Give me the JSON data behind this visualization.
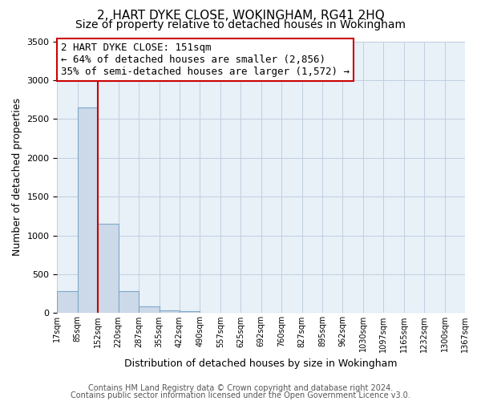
{
  "title": "2, HART DYKE CLOSE, WOKINGHAM, RG41 2HQ",
  "subtitle": "Size of property relative to detached houses in Wokingham",
  "xlabel": "Distribution of detached houses by size in Wokingham",
  "ylabel": "Number of detached properties",
  "bin_labels": [
    "17sqm",
    "85sqm",
    "152sqm",
    "220sqm",
    "287sqm",
    "355sqm",
    "422sqm",
    "490sqm",
    "557sqm",
    "625sqm",
    "692sqm",
    "760sqm",
    "827sqm",
    "895sqm",
    "962sqm",
    "1030sqm",
    "1097sqm",
    "1165sqm",
    "1232sqm",
    "1300sqm",
    "1367sqm"
  ],
  "bar_values": [
    280,
    2650,
    1155,
    280,
    90,
    30,
    20,
    0,
    0,
    0,
    0,
    0,
    0,
    0,
    0,
    0,
    0,
    0,
    0,
    0
  ],
  "bar_color": "#ccd9e8",
  "bar_edge_color": "#7fa8c8",
  "vline_x_index": 2,
  "vline_color": "#cc0000",
  "ylim": [
    0,
    3500
  ],
  "yticks": [
    0,
    500,
    1000,
    1500,
    2000,
    2500,
    3000,
    3500
  ],
  "annotation_text": "2 HART DYKE CLOSE: 151sqm\n← 64% of detached houses are smaller (2,856)\n35% of semi-detached houses are larger (1,572) →",
  "annotation_box_facecolor": "#ffffff",
  "annotation_box_edgecolor": "#cc0000",
  "footer_line1": "Contains HM Land Registry data © Crown copyright and database right 2024.",
  "footer_line2": "Contains public sector information licensed under the Open Government Licence v3.0.",
  "background_color": "#ffffff",
  "plot_bg_color": "#e8f0f8",
  "grid_color": "#c0cfe0",
  "title_fontsize": 11,
  "subtitle_fontsize": 10,
  "axis_label_fontsize": 9,
  "tick_fontsize": 8,
  "footer_fontsize": 7,
  "annotation_fontsize": 9
}
